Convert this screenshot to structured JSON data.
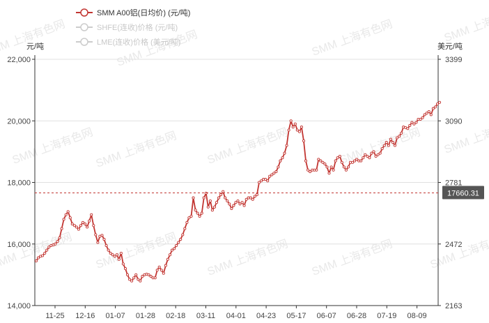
{
  "chart_data": {
    "type": "line",
    "legend": [
      {
        "label": "SMM A00铝(日均价) (元/吨)",
        "active": true,
        "color": "#c23531"
      },
      {
        "label": "SHFE(连收)价格 (元/吨)",
        "active": false,
        "color": "#cccccc"
      },
      {
        "label": "LME(连收)价格 (美元/吨)",
        "active": false,
        "color": "#cccccc"
      }
    ],
    "yLeft": {
      "unit": "元/吨",
      "min": 14000,
      "max": 22000,
      "ticks": [
        "14,000",
        "16,000",
        "18,000",
        "20,000",
        "22,000"
      ]
    },
    "yRight": {
      "unit": "美元/吨",
      "ticks": [
        "2163",
        "2472",
        "2781",
        "3090",
        "3399"
      ]
    },
    "xTicks": [
      "11-25",
      "12-16",
      "01-07",
      "01-28",
      "02-18",
      "03-11",
      "04-01",
      "04-23",
      "05-17",
      "06-07",
      "06-28",
      "07-19",
      "08-09"
    ],
    "markerLine": {
      "value": 17660.31,
      "label": "17660.31"
    },
    "watermark": "SMM 上海有色网",
    "series": [
      {
        "name": "SMM A00铝(日均价)",
        "color": "#c23531",
        "values": [
          15450,
          15550,
          15600,
          15620,
          15700,
          15800,
          15900,
          15950,
          15970,
          16000,
          16080,
          16200,
          16500,
          16800,
          16950,
          17050,
          16850,
          16650,
          16600,
          16550,
          16480,
          16600,
          16700,
          16650,
          16550,
          16750,
          16950,
          16600,
          16300,
          16050,
          16250,
          16280,
          16150,
          15950,
          15800,
          15700,
          15650,
          15600,
          15650,
          15500,
          15700,
          15350,
          15200,
          15000,
          14850,
          14800,
          14900,
          15000,
          14850,
          14800,
          14950,
          15000,
          15020,
          15000,
          14950,
          14900,
          14900,
          15150,
          15250,
          15150,
          15050,
          15300,
          15500,
          15650,
          15800,
          15850,
          15950,
          16050,
          16150,
          16300,
          16500,
          16700,
          16850,
          16900,
          17500,
          17100,
          17000,
          16900,
          17000,
          17500,
          17650,
          17200,
          17400,
          17100,
          17200,
          17350,
          17500,
          17600,
          17700,
          17500,
          17400,
          17300,
          17150,
          17250,
          17350,
          17400,
          17300,
          17350,
          17250,
          17450,
          17500,
          17500,
          17450,
          17550,
          17600,
          18000,
          18050,
          18100,
          18100,
          18050,
          18200,
          18250,
          18300,
          18350,
          18500,
          18700,
          18800,
          18950,
          19200,
          19700,
          20000,
          19800,
          19900,
          19700,
          19650,
          19800,
          19350,
          18700,
          18400,
          18350,
          18400,
          18400,
          18400,
          18750,
          18700,
          18650,
          18600,
          18500,
          18300,
          18500,
          18400,
          18700,
          18800,
          18850,
          18650,
          18500,
          18400,
          18500,
          18650,
          18650,
          18700,
          18750,
          18700,
          18700,
          18800,
          18900,
          18850,
          18800,
          18950,
          19000,
          18850,
          18900,
          18950,
          19100,
          19200,
          19300,
          19200,
          19400,
          19300,
          19200,
          19450,
          19500,
          19600,
          19800,
          19780,
          19750,
          19850,
          19950,
          19900,
          19950,
          20050,
          20050,
          20100,
          20200,
          20250,
          20300,
          20200,
          20400,
          20450,
          20550,
          20600
        ]
      }
    ]
  }
}
